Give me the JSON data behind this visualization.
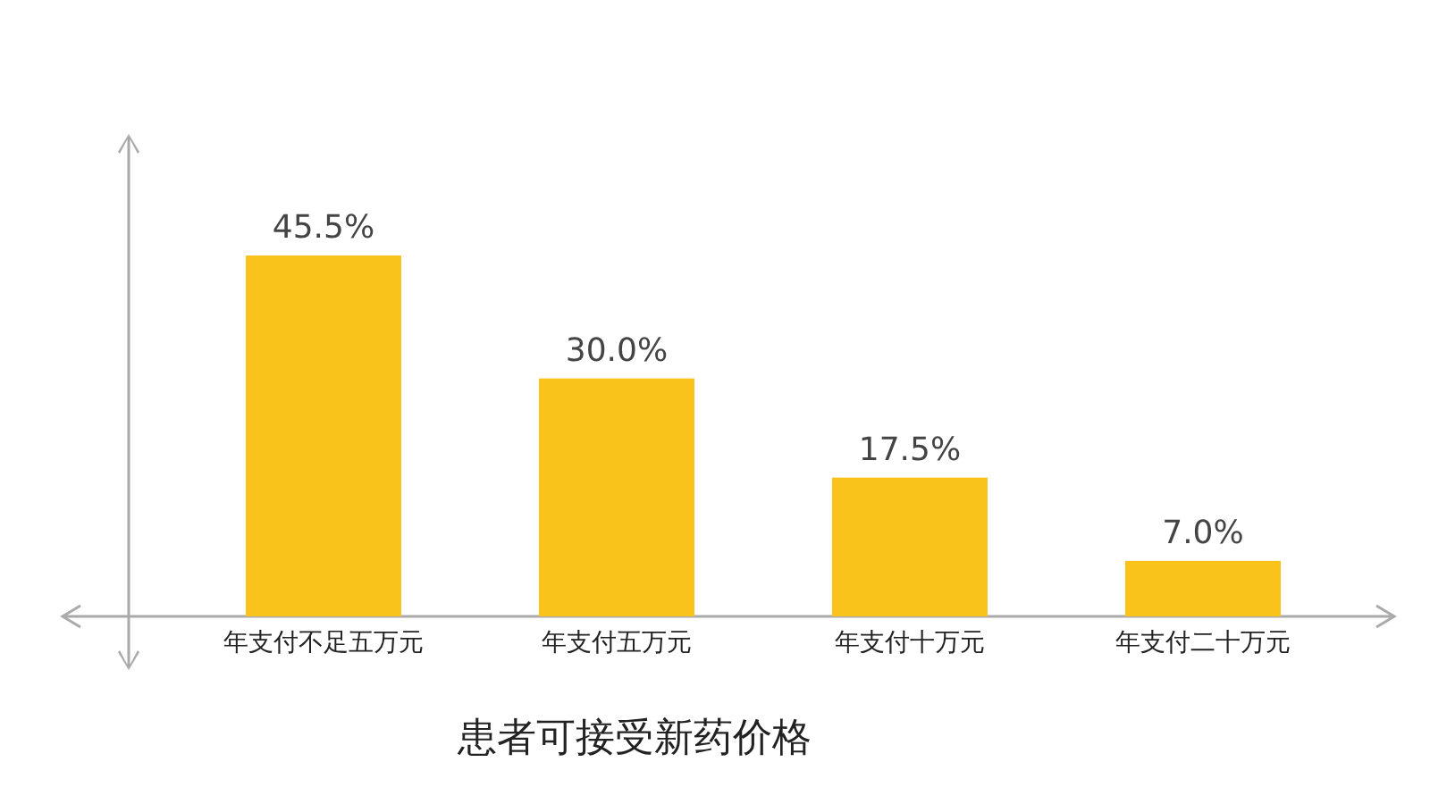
{
  "chart_data": {
    "type": "bar",
    "title": "患者可接受新药价格",
    "categories": [
      "年支付不足五万元",
      "年支付五万元",
      "年支付十万元",
      "年支付二十万元"
    ],
    "values": [
      45.5,
      30.0,
      17.5,
      7.0
    ],
    "value_labels": [
      "45.5%",
      "30.0%",
      "17.5%",
      "7.0%"
    ],
    "color": "#fac31c"
  }
}
